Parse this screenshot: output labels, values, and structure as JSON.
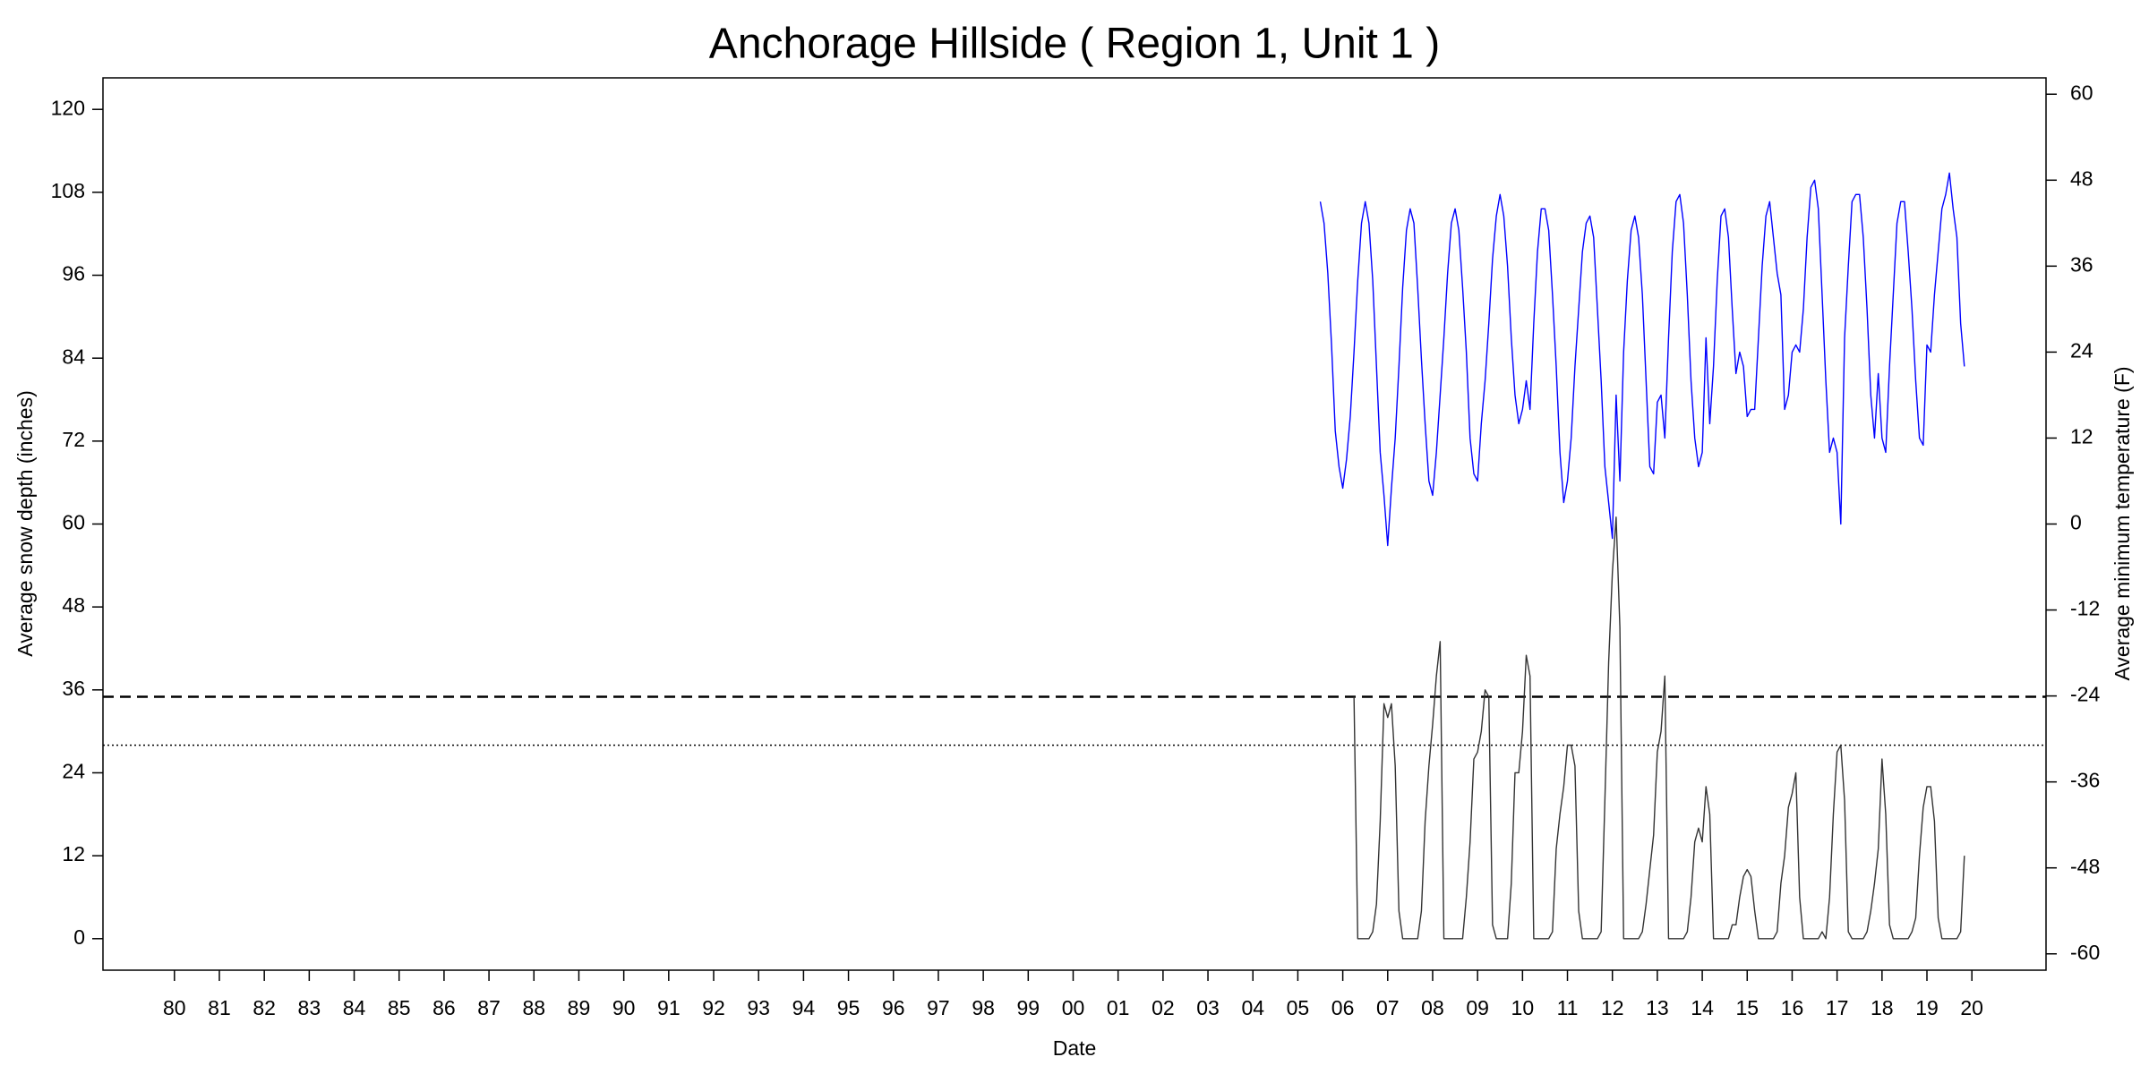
{
  "chart_data": {
    "type": "line",
    "title": "Anchorage Hillside ( Region 1, Unit 1 )",
    "xlabel": "Date",
    "ylabel": "Average snow depth (inches)",
    "y2label": "Average minimum temperature (F)",
    "xlim": [
      1978.41,
      2021.65
    ],
    "ylim": [
      -4.56,
      124.56
    ],
    "y2lim": [
      -62.28,
      62.28
    ],
    "xticks": [
      {
        "value": 1980,
        "label": "80"
      },
      {
        "value": 1981,
        "label": "81"
      },
      {
        "value": 1982,
        "label": "82"
      },
      {
        "value": 1983,
        "label": "83"
      },
      {
        "value": 1984,
        "label": "84"
      },
      {
        "value": 1985,
        "label": "85"
      },
      {
        "value": 1986,
        "label": "86"
      },
      {
        "value": 1987,
        "label": "87"
      },
      {
        "value": 1988,
        "label": "88"
      },
      {
        "value": 1989,
        "label": "89"
      },
      {
        "value": 1990,
        "label": "90"
      },
      {
        "value": 1991,
        "label": "91"
      },
      {
        "value": 1992,
        "label": "92"
      },
      {
        "value": 1993,
        "label": "93"
      },
      {
        "value": 1994,
        "label": "94"
      },
      {
        "value": 1995,
        "label": "95"
      },
      {
        "value": 1996,
        "label": "96"
      },
      {
        "value": 1997,
        "label": "97"
      },
      {
        "value": 1998,
        "label": "98"
      },
      {
        "value": 1999,
        "label": "99"
      },
      {
        "value": 2000,
        "label": "00"
      },
      {
        "value": 2001,
        "label": "01"
      },
      {
        "value": 2002,
        "label": "02"
      },
      {
        "value": 2003,
        "label": "03"
      },
      {
        "value": 2004,
        "label": "04"
      },
      {
        "value": 2005,
        "label": "05"
      },
      {
        "value": 2006,
        "label": "06"
      },
      {
        "value": 2007,
        "label": "07"
      },
      {
        "value": 2008,
        "label": "08"
      },
      {
        "value": 2009,
        "label": "09"
      },
      {
        "value": 2010,
        "label": "10"
      },
      {
        "value": 2011,
        "label": "11"
      },
      {
        "value": 2012,
        "label": "12"
      },
      {
        "value": 2013,
        "label": "13"
      },
      {
        "value": 2014,
        "label": "14"
      },
      {
        "value": 2015,
        "label": "15"
      },
      {
        "value": 2016,
        "label": "16"
      },
      {
        "value": 2017,
        "label": "17"
      },
      {
        "value": 2018,
        "label": "18"
      },
      {
        "value": 2019,
        "label": "19"
      },
      {
        "value": 2020,
        "label": "20"
      }
    ],
    "yticks": [
      0,
      12,
      24,
      36,
      48,
      60,
      72,
      84,
      96,
      108,
      120
    ],
    "y2ticks": [
      -60,
      -48,
      -36,
      -24,
      -12,
      0,
      12,
      24,
      36,
      48,
      60
    ],
    "hlines": [
      {
        "value": 35,
        "style": "dashed"
      },
      {
        "value": 28,
        "style": "dotted"
      }
    ],
    "x": [
      2005.5,
      2005.583,
      2005.667,
      2005.75,
      2005.833,
      2005.917,
      2006,
      2006.083,
      2006.167,
      2006.25,
      2006.333,
      2006.417,
      2006.5,
      2006.583,
      2006.667,
      2006.75,
      2006.833,
      2006.917,
      2007,
      2007.083,
      2007.167,
      2007.25,
      2007.333,
      2007.417,
      2007.5,
      2007.583,
      2007.667,
      2007.75,
      2007.833,
      2007.917,
      2008,
      2008.083,
      2008.167,
      2008.25,
      2008.333,
      2008.417,
      2008.5,
      2008.583,
      2008.667,
      2008.75,
      2008.833,
      2008.917,
      2009,
      2009.083,
      2009.167,
      2009.25,
      2009.333,
      2009.417,
      2009.5,
      2009.583,
      2009.667,
      2009.75,
      2009.833,
      2009.917,
      2010,
      2010.083,
      2010.167,
      2010.25,
      2010.333,
      2010.417,
      2010.5,
      2010.583,
      2010.667,
      2010.75,
      2010.833,
      2010.917,
      2011,
      2011.083,
      2011.167,
      2011.25,
      2011.333,
      2011.417,
      2011.5,
      2011.583,
      2011.667,
      2011.75,
      2011.833,
      2011.917,
      2012,
      2012.083,
      2012.167,
      2012.25,
      2012.333,
      2012.417,
      2012.5,
      2012.583,
      2012.667,
      2012.75,
      2012.833,
      2012.917,
      2013,
      2013.083,
      2013.167,
      2013.25,
      2013.333,
      2013.417,
      2013.5,
      2013.583,
      2013.667,
      2013.75,
      2013.833,
      2013.917,
      2014,
      2014.083,
      2014.167,
      2014.25,
      2014.333,
      2014.417,
      2014.5,
      2014.583,
      2014.667,
      2014.75,
      2014.833,
      2014.917,
      2015,
      2015.083,
      2015.167,
      2015.25,
      2015.333,
      2015.417,
      2015.5,
      2015.583,
      2015.667,
      2015.75,
      2015.833,
      2015.917,
      2016,
      2016.083,
      2016.167,
      2016.25,
      2016.333,
      2016.417,
      2016.5,
      2016.583,
      2016.667,
      2016.75,
      2016.833,
      2016.917,
      2017,
      2017.083,
      2017.167,
      2017.25,
      2017.333,
      2017.417,
      2017.5,
      2017.583,
      2017.667,
      2017.75,
      2017.833,
      2017.917,
      2018,
      2018.083,
      2018.167,
      2018.25,
      2018.333,
      2018.417,
      2018.5,
      2018.583,
      2018.667,
      2018.75,
      2018.833,
      2018.917,
      2019,
      2019.083,
      2019.167,
      2019.25,
      2019.333,
      2019.417,
      2019.5,
      2019.583,
      2019.667,
      2019.75,
      2019.833
    ],
    "series": [
      {
        "name": "Average snow depth",
        "color": "#333333",
        "axis": "y",
        "values": [
          null,
          null,
          null,
          null,
          null,
          null,
          null,
          null,
          null,
          35,
          0,
          0,
          0,
          0,
          1,
          5,
          17,
          34,
          32,
          34,
          25,
          4,
          0,
          0,
          0,
          0,
          0,
          4,
          17,
          25,
          31,
          38,
          43,
          0,
          0,
          0,
          0,
          0,
          0,
          6,
          14,
          26,
          27,
          30,
          36,
          35,
          2,
          0,
          0,
          0,
          0,
          8,
          24,
          24,
          30,
          41,
          38,
          0,
          0,
          0,
          0,
          0,
          1,
          13,
          18,
          22,
          28,
          28,
          25,
          4,
          0,
          0,
          0,
          0,
          0,
          1,
          20,
          40,
          53,
          61,
          45,
          0,
          0,
          0,
          0,
          0,
          1,
          5,
          10,
          15,
          27,
          30,
          38,
          0,
          0,
          0,
          0,
          0,
          1,
          6,
          14,
          16,
          14,
          22,
          18,
          0,
          0,
          0,
          0,
          0,
          2,
          2,
          6,
          9,
          10,
          9,
          4,
          0,
          0,
          0,
          0,
          0,
          1,
          8,
          12,
          19,
          21,
          24,
          6,
          0,
          0,
          0,
          0,
          0,
          1,
          0,
          6,
          18,
          27,
          28,
          20,
          1,
          0,
          0,
          0,
          0,
          1,
          4,
          8,
          13,
          26,
          18,
          2,
          0,
          0,
          0,
          0,
          0,
          1,
          3,
          12,
          19,
          22,
          22,
          17,
          3,
          0,
          0,
          0,
          0,
          0,
          1,
          12
        ]
      },
      {
        "name": "Average minimum temperature",
        "color": "#0000ff",
        "axis": "y2",
        "values": [
          45,
          42,
          35,
          25,
          13,
          8,
          5,
          9,
          15,
          24,
          34,
          42,
          45,
          42,
          34,
          22,
          10,
          4,
          -3,
          5,
          12,
          22,
          33,
          41,
          44,
          42,
          33,
          23,
          14,
          6,
          4,
          10,
          18,
          26,
          35,
          42,
          44,
          41,
          33,
          24,
          12,
          7,
          6,
          14,
          20,
          28,
          37,
          43,
          46,
          43,
          36,
          26,
          18,
          14,
          16,
          20,
          16,
          28,
          38,
          44,
          44,
          41,
          32,
          22,
          10,
          3,
          6,
          12,
          22,
          30,
          38,
          42,
          43,
          40,
          30,
          20,
          8,
          3,
          -2,
          18,
          6,
          24,
          34,
          41,
          43,
          40,
          32,
          20,
          8,
          7,
          17,
          18,
          12,
          26,
          38,
          45,
          46,
          42,
          32,
          20,
          12,
          8,
          10,
          26,
          14,
          22,
          34,
          43,
          44,
          40,
          30,
          21,
          24,
          22,
          15,
          16,
          16,
          26,
          36,
          43,
          45,
          40,
          35,
          32,
          16,
          18,
          24,
          25,
          24,
          30,
          40,
          47,
          48,
          44,
          32,
          20,
          10,
          12,
          10,
          0,
          26,
          36,
          45,
          46,
          46,
          40,
          30,
          18,
          12,
          21,
          12,
          10,
          22,
          32,
          42,
          45,
          45,
          38,
          30,
          20,
          12,
          11,
          25,
          24,
          32,
          38,
          44,
          46,
          49,
          44,
          40,
          28,
          22
        ]
      }
    ]
  }
}
